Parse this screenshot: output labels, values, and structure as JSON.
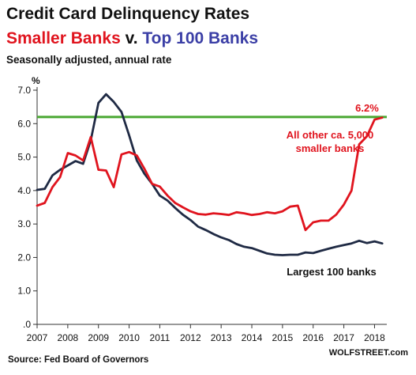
{
  "header": {
    "title": "Credit Card Delinquency Rates",
    "subtitle_part1": "Smaller Banks",
    "subtitle_part2": " v. ",
    "subtitle_part3": "Top 100 Banks",
    "note": "Seasonally adjusted, annual rate"
  },
  "footer": {
    "source": "Source: Fed Board of Governors",
    "brand": "WOLFSTREET.com"
  },
  "colors": {
    "smaller_banks": "#e0141e",
    "top_banks": "#1f2a44",
    "reference_line": "#4aa832"
  },
  "chart_data": {
    "type": "line",
    "title": "Credit Card Delinquency Rates",
    "ylabel": "%",
    "ylim": [
      0,
      7.0
    ],
    "xlim": [
      2007,
      2018.4
    ],
    "y_ticks": [
      "7.0",
      "6.0",
      "5.0",
      "4.0",
      "3.0",
      "2.0",
      "1.0",
      ".0"
    ],
    "y_tick_values": [
      7,
      6,
      5,
      4,
      3,
      2,
      1,
      0
    ],
    "x_ticks": [
      "2007",
      "2008",
      "2009",
      "2010",
      "2011",
      "2012",
      "2013",
      "2014",
      "2015",
      "2016",
      "2017",
      "2018"
    ],
    "reference_line": {
      "value": 6.2,
      "label": "6.2%"
    },
    "annotations": {
      "smaller_banks_line1": "All other ca. 5,000",
      "smaller_banks_line2": "smaller banks",
      "top_banks": "Largest 100 banks"
    },
    "series": [
      {
        "name": "All other ca. 5,000 smaller banks",
        "color": "#e0141e",
        "x": [
          2007.0,
          2007.25,
          2007.5,
          2007.75,
          2008.0,
          2008.25,
          2008.5,
          2008.75,
          2009.0,
          2009.25,
          2009.5,
          2009.75,
          2010.0,
          2010.25,
          2010.5,
          2010.75,
          2011.0,
          2011.25,
          2011.5,
          2011.75,
          2012.0,
          2012.25,
          2012.5,
          2012.75,
          2013.0,
          2013.25,
          2013.5,
          2013.75,
          2014.0,
          2014.25,
          2014.5,
          2014.75,
          2015.0,
          2015.25,
          2015.5,
          2015.75,
          2016.0,
          2016.25,
          2016.5,
          2016.75,
          2017.0,
          2017.25,
          2017.5,
          2017.75,
          2018.0,
          2018.25
        ],
        "values": [
          3.55,
          3.63,
          4.1,
          4.4,
          5.12,
          5.05,
          4.9,
          5.6,
          4.62,
          4.6,
          4.1,
          5.08,
          5.15,
          5.05,
          4.65,
          4.2,
          4.12,
          3.85,
          3.63,
          3.5,
          3.38,
          3.3,
          3.28,
          3.32,
          3.3,
          3.27,
          3.35,
          3.32,
          3.27,
          3.3,
          3.35,
          3.32,
          3.38,
          3.52,
          3.55,
          2.82,
          3.05,
          3.1,
          3.1,
          3.28,
          3.58,
          4.0,
          5.38,
          5.62,
          6.12,
          6.18
        ]
      },
      {
        "name": "Largest 100 banks",
        "color": "#1f2a44",
        "x": [
          2007.0,
          2007.25,
          2007.5,
          2007.75,
          2008.0,
          2008.25,
          2008.5,
          2008.75,
          2009.0,
          2009.25,
          2009.5,
          2009.75,
          2010.0,
          2010.25,
          2010.5,
          2010.75,
          2011.0,
          2011.25,
          2011.5,
          2011.75,
          2012.0,
          2012.25,
          2012.5,
          2012.75,
          2013.0,
          2013.25,
          2013.5,
          2013.75,
          2014.0,
          2014.25,
          2014.5,
          2014.75,
          2015.0,
          2015.25,
          2015.5,
          2015.75,
          2016.0,
          2016.25,
          2016.5,
          2016.75,
          2017.0,
          2017.25,
          2017.5,
          2017.75,
          2018.0,
          2018.25
        ],
        "values": [
          4.02,
          4.05,
          4.45,
          4.62,
          4.75,
          4.88,
          4.8,
          5.5,
          6.62,
          6.88,
          6.65,
          6.35,
          5.65,
          4.9,
          4.5,
          4.2,
          3.85,
          3.7,
          3.48,
          3.28,
          3.12,
          2.92,
          2.82,
          2.7,
          2.6,
          2.52,
          2.4,
          2.32,
          2.28,
          2.2,
          2.12,
          2.08,
          2.07,
          2.08,
          2.08,
          2.15,
          2.13,
          2.2,
          2.26,
          2.32,
          2.37,
          2.42,
          2.5,
          2.43,
          2.48,
          2.42
        ]
      }
    ]
  }
}
